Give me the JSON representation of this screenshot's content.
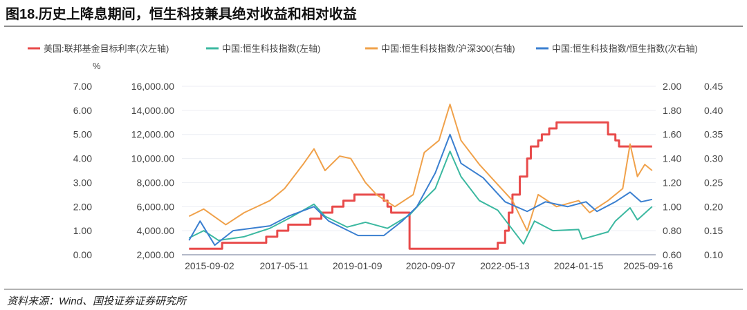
{
  "title": "图18.历史上降息期间，恒生科技兼具绝对收益和相对收益",
  "source": "资料来源：Wind、国投证券证券研究所",
  "chart_data": {
    "type": "line",
    "unit_label": "%",
    "x_ticks": [
      "2015-09-02",
      "2017-05-11",
      "2019-01-09",
      "2020-09-07",
      "2022-05-13",
      "2024-01-15",
      "2025-09-16"
    ],
    "x_range": [
      "2015-02",
      "2025-09-16"
    ],
    "axes": {
      "left1": {
        "ticks": [
          "0.00",
          "1.00",
          "2.00",
          "3.00",
          "4.00",
          "5.00",
          "6.00",
          "7.00"
        ],
        "range": [
          0,
          7
        ]
      },
      "left2": {
        "ticks": [
          "2,000.00",
          "4,000.00",
          "6,000.00",
          "8,000.00",
          "10,000.00",
          "12,000.00",
          "14,000.00",
          "16,000.00"
        ],
        "range": [
          2000,
          16000
        ]
      },
      "right1": {
        "ticks": [
          "0.60",
          "0.80",
          "1.00",
          "1.20",
          "1.40",
          "1.60",
          "1.80",
          "2.00"
        ],
        "range": [
          0.6,
          2.0
        ]
      },
      "right2": {
        "ticks": [
          "0.10",
          "0.15",
          "0.20",
          "0.25",
          "0.30",
          "0.35",
          "0.40",
          "0.45"
        ],
        "range": [
          0.1,
          0.45
        ]
      }
    },
    "grid": true,
    "legend_position": "top",
    "series": [
      {
        "name": "美国:联邦基金目标利率(次左轴)",
        "axis": "left1",
        "color": "#e84a4a",
        "step": true,
        "points": [
          [
            "2015-03",
            0.25
          ],
          [
            "2015-12",
            0.5
          ],
          [
            "2016-12",
            0.75
          ],
          [
            "2017-03",
            1.0
          ],
          [
            "2017-06",
            1.25
          ],
          [
            "2017-12",
            1.5
          ],
          [
            "2018-03",
            1.75
          ],
          [
            "2018-06",
            2.0
          ],
          [
            "2018-09",
            2.25
          ],
          [
            "2018-12",
            2.5
          ],
          [
            "2019-08",
            2.25
          ],
          [
            "2019-09",
            2.0
          ],
          [
            "2019-10",
            1.75
          ],
          [
            "2020-03",
            0.25
          ],
          [
            "2022-03",
            0.5
          ],
          [
            "2022-05",
            1.0
          ],
          [
            "2022-06",
            1.75
          ],
          [
            "2022-07",
            2.5
          ],
          [
            "2022-09",
            3.25
          ],
          [
            "2022-11",
            4.0
          ],
          [
            "2022-12",
            4.5
          ],
          [
            "2023-02",
            4.75
          ],
          [
            "2023-03",
            5.0
          ],
          [
            "2023-05",
            5.25
          ],
          [
            "2023-07",
            5.5
          ],
          [
            "2024-09",
            5.0
          ],
          [
            "2024-11",
            4.75
          ],
          [
            "2024-12",
            4.5
          ],
          [
            "2025-09",
            4.5
          ]
        ]
      },
      {
        "name": "中国:恒生科技指数(左轴)",
        "axis": "left2",
        "color": "#3bb8a0",
        "points": [
          [
            "2015-03",
            3400
          ],
          [
            "2015-07",
            4000
          ],
          [
            "2015-11",
            3200
          ],
          [
            "2016-06",
            3500
          ],
          [
            "2017-01",
            4200
          ],
          [
            "2017-06",
            5000
          ],
          [
            "2018-01",
            6200
          ],
          [
            "2018-04",
            5200
          ],
          [
            "2018-10",
            4300
          ],
          [
            "2019-03",
            4700
          ],
          [
            "2019-09",
            4200
          ],
          [
            "2020-03",
            5300
          ],
          [
            "2020-06",
            6300
          ],
          [
            "2020-10",
            7500
          ],
          [
            "2021-02",
            10600
          ],
          [
            "2021-05",
            8500
          ],
          [
            "2021-10",
            6500
          ],
          [
            "2022-03",
            5700
          ],
          [
            "2022-06",
            4500
          ],
          [
            "2022-10",
            2900
          ],
          [
            "2023-01",
            4800
          ],
          [
            "2023-06",
            4000
          ],
          [
            "2024-01",
            4100
          ],
          [
            "2024-02",
            3300
          ],
          [
            "2024-09",
            3900
          ],
          [
            "2024-11",
            4800
          ],
          [
            "2025-03",
            5900
          ],
          [
            "2025-05",
            4900
          ],
          [
            "2025-09",
            6000
          ]
        ]
      },
      {
        "name": "中国:恒生科技指数/沪深300(右轴)",
        "axis": "right1",
        "color": "#f0a14a",
        "points": [
          [
            "2015-03",
            0.92
          ],
          [
            "2015-07",
            0.98
          ],
          [
            "2016-01",
            0.85
          ],
          [
            "2016-06",
            0.95
          ],
          [
            "2017-01",
            1.05
          ],
          [
            "2017-05",
            1.15
          ],
          [
            "2017-10",
            1.35
          ],
          [
            "2018-01",
            1.48
          ],
          [
            "2018-04",
            1.3
          ],
          [
            "2018-08",
            1.42
          ],
          [
            "2018-11",
            1.4
          ],
          [
            "2019-03",
            1.2
          ],
          [
            "2019-06",
            1.1
          ],
          [
            "2019-11",
            1.0
          ],
          [
            "2020-04",
            1.1
          ],
          [
            "2020-07",
            1.45
          ],
          [
            "2020-11",
            1.55
          ],
          [
            "2021-02",
            1.85
          ],
          [
            "2021-05",
            1.55
          ],
          [
            "2021-10",
            1.35
          ],
          [
            "2022-04",
            1.15
          ],
          [
            "2022-07",
            1.05
          ],
          [
            "2022-11",
            0.8
          ],
          [
            "2023-02",
            1.1
          ],
          [
            "2023-07",
            1.0
          ],
          [
            "2024-01",
            1.05
          ],
          [
            "2024-04",
            0.95
          ],
          [
            "2024-09",
            1.05
          ],
          [
            "2025-01",
            1.15
          ],
          [
            "2025-03",
            1.52
          ],
          [
            "2025-05",
            1.25
          ],
          [
            "2025-07",
            1.35
          ],
          [
            "2025-09",
            1.3
          ]
        ]
      },
      {
        "name": "中国:恒生科技指数/恒生指数(次右轴)",
        "axis": "right2",
        "color": "#3a7fd0",
        "points": [
          [
            "2015-03",
            0.13
          ],
          [
            "2015-06",
            0.17
          ],
          [
            "2015-10",
            0.12
          ],
          [
            "2016-03",
            0.15
          ],
          [
            "2017-01",
            0.16
          ],
          [
            "2017-06",
            0.18
          ],
          [
            "2018-01",
            0.2
          ],
          [
            "2018-05",
            0.17
          ],
          [
            "2019-01",
            0.14
          ],
          [
            "2019-08",
            0.14
          ],
          [
            "2020-01",
            0.17
          ],
          [
            "2020-05",
            0.2
          ],
          [
            "2020-10",
            0.27
          ],
          [
            "2021-02",
            0.35
          ],
          [
            "2021-05",
            0.29
          ],
          [
            "2021-11",
            0.26
          ],
          [
            "2022-05",
            0.21
          ],
          [
            "2022-11",
            0.19
          ],
          [
            "2023-04",
            0.21
          ],
          [
            "2023-10",
            0.2
          ],
          [
            "2024-03",
            0.21
          ],
          [
            "2024-06",
            0.19
          ],
          [
            "2024-11",
            0.21
          ],
          [
            "2025-03",
            0.23
          ],
          [
            "2025-06",
            0.21
          ],
          [
            "2025-09",
            0.215
          ]
        ]
      }
    ]
  }
}
